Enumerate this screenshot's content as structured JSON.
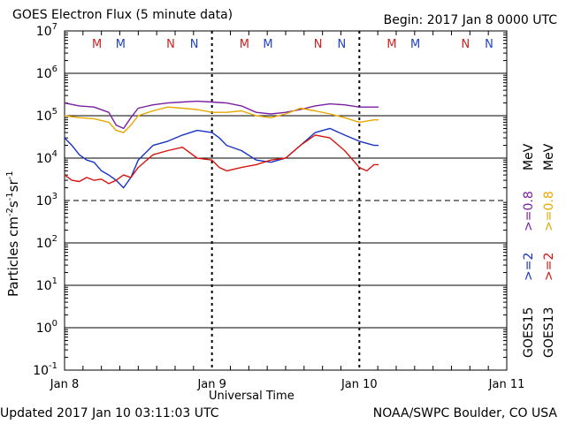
{
  "header": {
    "title": "GOES Electron Flux (5 minute data)",
    "begin": "Begin: 2017 Jan 8 0000 UTC"
  },
  "footer": {
    "updated": "Updated 2017 Jan 10 03:11:03 UTC",
    "source": "NOAA/SWPC Boulder, CO USA"
  },
  "colors": {
    "purple": "#7a1fa0",
    "orange": "#e6a800",
    "blue": "#1733c4",
    "red": "#d8140e",
    "m_marker": "#cc2222",
    "n_marker": "#2233bb",
    "m_marker_blue": "#2244bb",
    "n_marker_red": "#cc2222"
  },
  "legend": {
    "satellites": [
      "GOES15",
      "GOES13"
    ],
    "channels": [
      {
        "sat": "GOES15",
        "label": ">=2",
        "color": "#1733c4"
      },
      {
        "sat": "GOES13",
        "label": ">=2",
        "color": "#d8140e"
      },
      {
        "sat": "GOES15",
        "label": ">=0.8",
        "color": "#7a1fa0"
      },
      {
        "sat": "GOES13",
        "label": ">=0.8",
        "color": "#e6a800"
      }
    ],
    "unit": "MeV"
  },
  "markers": [
    {
      "text": "M",
      "x": 0.22,
      "color": "#cc2222"
    },
    {
      "text": "M",
      "x": 0.38,
      "color": "#2244bb"
    },
    {
      "text": "N",
      "x": 0.72,
      "color": "#cc2222"
    },
    {
      "text": "N",
      "x": 0.88,
      "color": "#2244bb"
    },
    {
      "text": "M",
      "x": 1.22,
      "color": "#cc2222"
    },
    {
      "text": "M",
      "x": 1.38,
      "color": "#2244bb"
    },
    {
      "text": "N",
      "x": 1.72,
      "color": "#cc2222"
    },
    {
      "text": "N",
      "x": 1.88,
      "color": "#2244bb"
    },
    {
      "text": "M",
      "x": 2.22,
      "color": "#cc2222"
    },
    {
      "text": "M",
      "x": 2.38,
      "color": "#2244bb"
    },
    {
      "text": "N",
      "x": 2.72,
      "color": "#cc2222"
    },
    {
      "text": "N",
      "x": 2.88,
      "color": "#2244bb"
    }
  ],
  "chart_data": {
    "type": "line",
    "title": "GOES Electron Flux (5 minute data)",
    "xlabel": "Universal Time",
    "ylabel": "Particles cm-2s-1sr-1",
    "xticks": [
      "Jan 8",
      "Jan 9",
      "Jan 10",
      "Jan 11"
    ],
    "xlim": [
      0,
      3
    ],
    "yscale": "log",
    "ylim": [
      0.1,
      10000000
    ],
    "yticks": [
      {
        "base": "10",
        "exp": "7"
      },
      {
        "base": "10",
        "exp": "6"
      },
      {
        "base": "10",
        "exp": "5"
      },
      {
        "base": "10",
        "exp": "4"
      },
      {
        "base": "10",
        "exp": "3"
      },
      {
        "base": "10",
        "exp": "2"
      },
      {
        "base": "10",
        "exp": "1"
      },
      {
        "base": "10",
        "exp": "0"
      },
      {
        "base": "10",
        "exp": "-1"
      }
    ],
    "threshold": 1000,
    "series": [
      {
        "name": "GOES15 >=0.8 MeV",
        "color": "#7a1fa0",
        "x": [
          0,
          0.1,
          0.2,
          0.3,
          0.35,
          0.4,
          0.45,
          0.5,
          0.6,
          0.7,
          0.8,
          0.9,
          1.0,
          1.1,
          1.2,
          1.3,
          1.4,
          1.5,
          1.6,
          1.7,
          1.8,
          1.9,
          2.0,
          2.1,
          2.13
        ],
        "y": [
          200000,
          170000,
          160000,
          120000,
          60000,
          50000,
          90000,
          150000,
          180000,
          200000,
          210000,
          220000,
          210000,
          200000,
          170000,
          120000,
          110000,
          120000,
          140000,
          170000,
          190000,
          180000,
          160000,
          160000,
          160000
        ]
      },
      {
        "name": "GOES13 >=0.8 MeV",
        "color": "#e6a800",
        "x": [
          0,
          0.1,
          0.2,
          0.3,
          0.35,
          0.4,
          0.45,
          0.5,
          0.6,
          0.7,
          0.8,
          0.9,
          1.0,
          1.1,
          1.2,
          1.3,
          1.4,
          1.5,
          1.6,
          1.7,
          1.8,
          1.9,
          2.0,
          2.1,
          2.13
        ],
        "y": [
          100000,
          90000,
          85000,
          70000,
          45000,
          40000,
          60000,
          100000,
          130000,
          160000,
          150000,
          140000,
          120000,
          120000,
          130000,
          100000,
          90000,
          110000,
          150000,
          130000,
          110000,
          90000,
          70000,
          80000,
          80000
        ]
      },
      {
        "name": "GOES15 >=2 MeV",
        "color": "#1733c4",
        "x": [
          0,
          0.05,
          0.1,
          0.15,
          0.2,
          0.25,
          0.3,
          0.35,
          0.4,
          0.45,
          0.5,
          0.6,
          0.7,
          0.8,
          0.9,
          1.0,
          1.05,
          1.1,
          1.2,
          1.3,
          1.4,
          1.5,
          1.6,
          1.7,
          1.8,
          1.9,
          2.0,
          2.1,
          2.13
        ],
        "y": [
          30000,
          20000,
          12000,
          9000,
          8000,
          5000,
          4000,
          3000,
          2000,
          3500,
          9000,
          20000,
          25000,
          35000,
          45000,
          40000,
          30000,
          20000,
          15000,
          9000,
          8000,
          10000,
          20000,
          40000,
          50000,
          35000,
          25000,
          20000,
          20000
        ]
      },
      {
        "name": "GOES13 >=2 MeV",
        "color": "#d8140e",
        "x": [
          0,
          0.05,
          0.1,
          0.15,
          0.2,
          0.25,
          0.3,
          0.35,
          0.4,
          0.45,
          0.5,
          0.6,
          0.7,
          0.8,
          0.9,
          1.0,
          1.05,
          1.1,
          1.2,
          1.3,
          1.4,
          1.5,
          1.6,
          1.7,
          1.8,
          1.9,
          2.0,
          2.05,
          2.1,
          2.13
        ],
        "y": [
          4000,
          3000,
          2800,
          3500,
          3000,
          3200,
          2500,
          3000,
          4000,
          3500,
          6000,
          12000,
          15000,
          18000,
          10000,
          9000,
          6000,
          5000,
          6000,
          7000,
          9000,
          10000,
          20000,
          35000,
          30000,
          15000,
          6000,
          5000,
          7000,
          7000
        ]
      }
    ]
  }
}
